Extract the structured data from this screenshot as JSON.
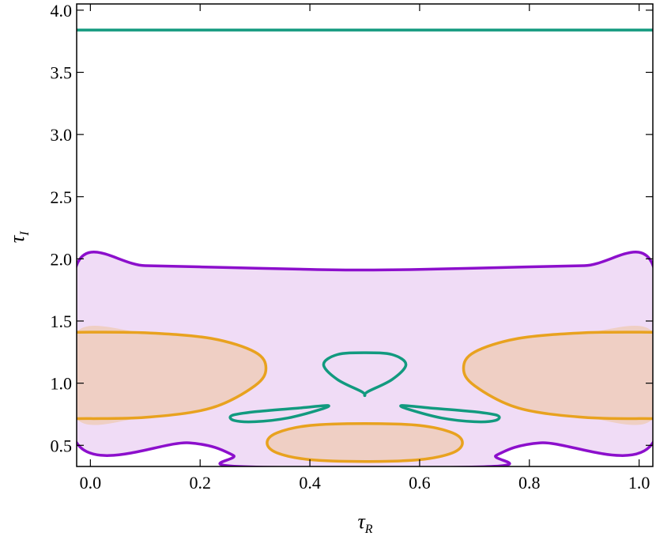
{
  "chart_data": {
    "type": "contour",
    "xlabel": "τ",
    "xlabel_sub": "R",
    "ylabel": "τ",
    "ylabel_sub": "I",
    "xlim": [
      -0.025,
      1.025
    ],
    "ylim": [
      0.33,
      4.05
    ],
    "xticks": [
      "0.0",
      "0.2",
      "0.4",
      "0.6",
      "0.8",
      "1.0"
    ],
    "yticks": [
      "0.5",
      "1.0",
      "1.5",
      "2.0",
      "2.5",
      "3.0",
      "3.5",
      "4.0"
    ],
    "grid": false,
    "colors": {
      "purple": "#8c0fcc",
      "purple_fill": "#f0dcf6",
      "orange": "#e8a21f",
      "orange_fill": "#efcfc4",
      "green": "#129a7f"
    },
    "contours": [
      {
        "color": "green",
        "points": [
          [
            -0.025,
            3.84
          ],
          [
            0.1,
            3.84
          ],
          [
            0.3,
            3.84
          ],
          [
            0.5,
            3.84
          ],
          [
            0.7,
            3.84
          ],
          [
            0.9,
            3.84
          ],
          [
            1.025,
            3.84
          ]
        ]
      },
      {
        "color": "purple",
        "fill": "purple_fill",
        "points": [
          [
            -0.025,
            1.95
          ],
          [
            0.1,
            1.945
          ],
          [
            0.25,
            1.93
          ],
          [
            0.4,
            1.915
          ],
          [
            0.5,
            1.91
          ],
          [
            0.6,
            1.915
          ],
          [
            0.75,
            1.93
          ],
          [
            0.9,
            1.945
          ],
          [
            1.025,
            1.95
          ],
          [
            1.025,
            0.52
          ],
          [
            0.82,
            0.52
          ],
          [
            0.74,
            0.42
          ],
          [
            0.73,
            0.33
          ],
          [
            0.27,
            0.33
          ],
          [
            0.26,
            0.42
          ],
          [
            0.18,
            0.52
          ],
          [
            -0.025,
            0.52
          ]
        ]
      },
      {
        "color": "orange",
        "fill": "orange_fill",
        "points": [
          [
            -0.025,
            1.41
          ],
          [
            0.1,
            1.405
          ],
          [
            0.22,
            1.36
          ],
          [
            0.3,
            1.25
          ],
          [
            0.32,
            1.12
          ],
          [
            0.3,
            0.98
          ],
          [
            0.22,
            0.8
          ],
          [
            0.1,
            0.725
          ],
          [
            -0.025,
            0.715
          ]
        ]
      },
      {
        "color": "orange",
        "fill": "orange_fill",
        "points": [
          [
            1.025,
            1.41
          ],
          [
            0.9,
            1.405
          ],
          [
            0.78,
            1.36
          ],
          [
            0.7,
            1.25
          ],
          [
            0.68,
            1.12
          ],
          [
            0.7,
            0.98
          ],
          [
            0.78,
            0.8
          ],
          [
            0.9,
            0.725
          ],
          [
            1.025,
            0.715
          ]
        ]
      },
      {
        "color": "orange",
        "fill": "orange_fill",
        "closed": true,
        "points": [
          [
            0.5,
            0.675
          ],
          [
            0.6,
            0.66
          ],
          [
            0.66,
            0.6
          ],
          [
            0.678,
            0.52
          ],
          [
            0.66,
            0.44
          ],
          [
            0.6,
            0.385
          ],
          [
            0.5,
            0.37
          ],
          [
            0.4,
            0.385
          ],
          [
            0.34,
            0.44
          ],
          [
            0.322,
            0.52
          ],
          [
            0.34,
            0.6
          ],
          [
            0.4,
            0.66
          ]
        ]
      },
      {
        "color": "green",
        "closed": true,
        "points": [
          [
            0.5,
            1.245
          ],
          [
            0.55,
            1.23
          ],
          [
            0.575,
            1.15
          ],
          [
            0.55,
            1.03
          ],
          [
            0.505,
            0.93
          ],
          [
            0.5,
            0.9
          ],
          [
            0.495,
            0.93
          ],
          [
            0.45,
            1.03
          ],
          [
            0.425,
            1.15
          ],
          [
            0.45,
            1.23
          ]
        ]
      },
      {
        "color": "green",
        "closed": true,
        "points": [
          [
            0.432,
            0.82
          ],
          [
            0.38,
            0.8
          ],
          [
            0.3,
            0.77
          ],
          [
            0.258,
            0.74
          ],
          [
            0.262,
            0.7
          ],
          [
            0.3,
            0.69
          ],
          [
            0.36,
            0.72
          ],
          [
            0.42,
            0.79
          ]
        ]
      },
      {
        "color": "green",
        "closed": true,
        "points": [
          [
            0.568,
            0.82
          ],
          [
            0.62,
            0.8
          ],
          [
            0.7,
            0.77
          ],
          [
            0.742,
            0.74
          ],
          [
            0.738,
            0.7
          ],
          [
            0.7,
            0.69
          ],
          [
            0.64,
            0.72
          ],
          [
            0.58,
            0.79
          ]
        ]
      }
    ]
  }
}
